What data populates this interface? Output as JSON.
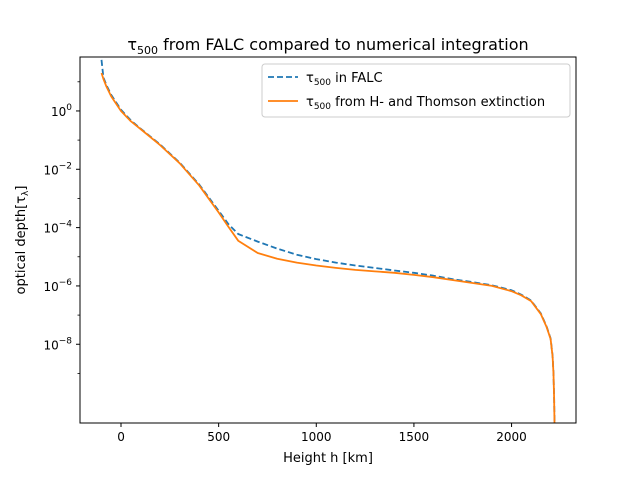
{
  "chart_data": {
    "type": "line",
    "title": {
      "main": "τ",
      "sub": "500",
      "rest": " from FALC compared to numerical integration"
    },
    "xlabel": "Height h [km]",
    "ylabel": {
      "main": "optical depth[τ",
      "sub": "λ",
      "end": "]"
    },
    "xlim": [
      -210,
      2330
    ],
    "ylim_log10": [
      -10.7,
      1.85
    ],
    "yscale": "log",
    "grid": false,
    "legend_position": "top-right",
    "x_ticks": [
      {
        "value": 0,
        "label": "0"
      },
      {
        "value": 500,
        "label": "500"
      },
      {
        "value": 1000,
        "label": "1000"
      },
      {
        "value": 1500,
        "label": "1500"
      },
      {
        "value": 2000,
        "label": "2000"
      }
    ],
    "y_ticks": [
      {
        "exp": 0,
        "label_base": "10",
        "label_exp": "0"
      },
      {
        "exp": -2,
        "label_base": "10",
        "label_exp": "−2"
      },
      {
        "exp": -4,
        "label_base": "10",
        "label_exp": "−4"
      },
      {
        "exp": -6,
        "label_base": "10",
        "label_exp": "−6"
      },
      {
        "exp": -8,
        "label_base": "10",
        "label_exp": "−8"
      }
    ],
    "series": [
      {
        "name": {
          "main": "τ",
          "sub": "500",
          "rest": " in FALC"
        },
        "color": "#1f77b4",
        "dash": "dashed",
        "x": [
          -100,
          -90,
          -75,
          -50,
          0,
          50,
          100,
          200,
          300,
          400,
          500,
          550,
          600,
          700,
          800,
          900,
          1000,
          1100,
          1200,
          1300,
          1400,
          1500,
          1600,
          1700,
          1800,
          1900,
          2000,
          2050,
          2100,
          2150,
          2180,
          2200,
          2210,
          2215,
          2218,
          2220
        ],
        "y": [
          1.75,
          1.15,
          0.89,
          0.55,
          0.039,
          -0.32,
          -0.6,
          -1.15,
          -1.77,
          -2.52,
          -3.42,
          -3.88,
          -4.22,
          -4.48,
          -4.72,
          -4.93,
          -5.08,
          -5.2,
          -5.3,
          -5.38,
          -5.47,
          -5.55,
          -5.65,
          -5.77,
          -5.87,
          -5.98,
          -6.15,
          -6.3,
          -6.5,
          -6.95,
          -7.4,
          -7.8,
          -8.4,
          -9.0,
          -9.8,
          -10.7
        ]
      },
      {
        "name": {
          "main": "τ",
          "sub": "500",
          "rest": " from H- and Thomson extinction"
        },
        "color": "#ff7f0e",
        "dash": "solid",
        "x": [
          -100,
          -90,
          -75,
          -50,
          0,
          50,
          100,
          200,
          300,
          400,
          500,
          550,
          600,
          700,
          800,
          900,
          1000,
          1100,
          1200,
          1300,
          1400,
          1500,
          1600,
          1700,
          1800,
          1900,
          2000,
          2050,
          2100,
          2150,
          2180,
          2200,
          2210,
          2215,
          2218,
          2220
        ],
        "y": [
          1.3,
          1.1,
          0.84,
          0.5,
          0.0,
          -0.35,
          -0.62,
          -1.17,
          -1.79,
          -2.55,
          -3.48,
          -3.97,
          -4.45,
          -4.87,
          -5.07,
          -5.2,
          -5.3,
          -5.38,
          -5.45,
          -5.5,
          -5.55,
          -5.62,
          -5.7,
          -5.8,
          -5.9,
          -6.0,
          -6.18,
          -6.32,
          -6.52,
          -6.97,
          -7.42,
          -7.82,
          -8.42,
          -9.02,
          -9.82,
          -10.7
        ]
      }
    ]
  }
}
